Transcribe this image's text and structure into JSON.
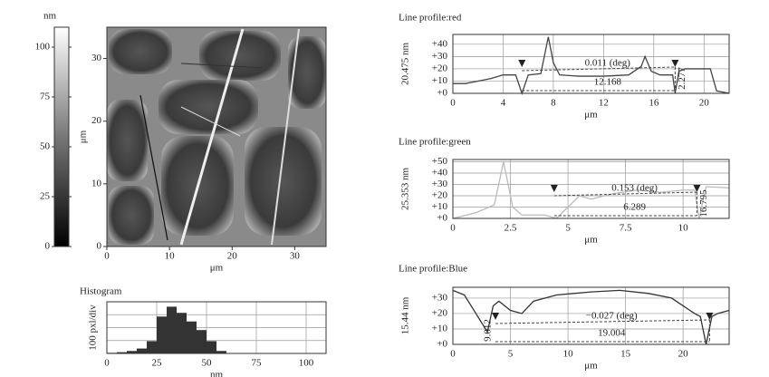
{
  "chart_data": [
    {
      "type": "colorbar",
      "title": "nm",
      "ylim": [
        0,
        110
      ],
      "yticks": [
        0,
        25,
        50,
        75,
        100
      ]
    },
    {
      "type": "image",
      "xlabel": "μm",
      "ylabel": "μm",
      "xlim": [
        0,
        35
      ],
      "ylim": [
        0,
        35
      ],
      "xticks": [
        0,
        10,
        20,
        30
      ],
      "yticks": [
        0,
        10,
        20,
        30
      ]
    },
    {
      "type": "histogram",
      "title": "Histogram",
      "xlabel": "nm",
      "ylabel": "100 pxl/div",
      "xlim": [
        0,
        110
      ],
      "ylim": [
        0,
        4.2
      ],
      "xticks": [
        0,
        25,
        50,
        75,
        100
      ],
      "bins": [
        0,
        5,
        10,
        15,
        20,
        25,
        30,
        35,
        40,
        45,
        50,
        55,
        60
      ],
      "values": [
        0.05,
        0.1,
        0.2,
        0.4,
        1.0,
        3.0,
        3.8,
        3.3,
        2.6,
        1.9,
        1.0,
        0.2
      ],
      "color": "#333333"
    },
    {
      "type": "line",
      "title": "Line profile:red",
      "ylabel": "20.475 nm",
      "xlabel": "μm",
      "xlim": [
        0,
        22
      ],
      "ylim": [
        0,
        48
      ],
      "color": "#444444",
      "xticks": [
        0,
        4,
        8,
        12,
        16,
        20
      ],
      "yticks": [
        {
          "value": 0,
          "label": "+0"
        },
        {
          "value": 10,
          "label": "+10"
        },
        {
          "value": 20,
          "label": "+20"
        },
        {
          "value": 30,
          "label": "+30"
        },
        {
          "value": 40,
          "label": "+40"
        }
      ],
      "x": [
        0,
        1,
        2,
        3,
        4,
        5,
        5.5,
        6,
        7,
        7.6,
        8,
        8.5,
        10,
        12,
        14,
        15,
        15.3,
        15.8,
        16.5,
        17.5,
        17.7,
        18,
        18.5,
        20.5,
        21,
        22
      ],
      "values": [
        8,
        8,
        10,
        12,
        15,
        15,
        0,
        15,
        16,
        46,
        25,
        15,
        14,
        14,
        15,
        22,
        30,
        18,
        15,
        15,
        0,
        18,
        20,
        20,
        2,
        0
      ],
      "cursors": [
        5.5,
        17.7
      ],
      "annotations": [
        "0.011 (deg)",
        "12.168",
        "2.277"
      ]
    },
    {
      "type": "line",
      "title": "Line profile:green",
      "ylabel": "25.353 nm",
      "xlabel": "μm",
      "xlim": [
        0,
        12
      ],
      "ylim": [
        0,
        52
      ],
      "color": "#bbbbbb",
      "xticks": [
        0,
        2.5,
        5,
        7.5,
        10
      ],
      "yticks": [
        {
          "value": 0,
          "label": "+0"
        },
        {
          "value": 10,
          "label": "+10"
        },
        {
          "value": 20,
          "label": "+20"
        },
        {
          "value": 30,
          "label": "+30"
        },
        {
          "value": 40,
          "label": "+40"
        },
        {
          "value": 50,
          "label": "+50"
        }
      ],
      "x": [
        0,
        1,
        1.8,
        2.2,
        2.6,
        3,
        4,
        4.5,
        5,
        5.5,
        6,
        7,
        8,
        9,
        10,
        10.5,
        10.7,
        11,
        12
      ],
      "values": [
        0,
        5,
        12,
        50,
        10,
        3,
        3,
        0,
        10,
        20,
        17,
        22,
        25,
        23,
        25,
        25,
        0,
        28,
        27
      ],
      "cursors": [
        4.4,
        10.6
      ],
      "annotations": [
        "0.153 (deg)",
        "6.289",
        "16.795"
      ]
    },
    {
      "type": "line",
      "title": "Line profile:Blue",
      "ylabel": "15.44 nm",
      "xlabel": "μm",
      "xlim": [
        0,
        24
      ],
      "ylim": [
        0,
        37
      ],
      "color": "#333333",
      "xticks": [
        0,
        5,
        10,
        15,
        20
      ],
      "yticks": [
        {
          "value": 0,
          "label": "+0"
        },
        {
          "value": 10,
          "label": "+10"
        },
        {
          "value": 20,
          "label": "+20"
        },
        {
          "value": 30,
          "label": "+30"
        }
      ],
      "x": [
        0,
        1,
        2,
        3,
        3.5,
        4,
        5,
        6,
        7,
        9,
        12,
        14.5,
        17,
        19,
        20,
        21,
        21.5,
        22,
        22.5,
        23,
        24
      ],
      "values": [
        35,
        32,
        20,
        8,
        25,
        28,
        22,
        20,
        28,
        32,
        34,
        35,
        33,
        30,
        25,
        20,
        18,
        0,
        18,
        20,
        22
      ],
      "cursors": [
        3.7,
        22.3
      ],
      "annotations": [
        "−0.027 (deg)",
        "19.004",
        "9.012"
      ]
    }
  ]
}
